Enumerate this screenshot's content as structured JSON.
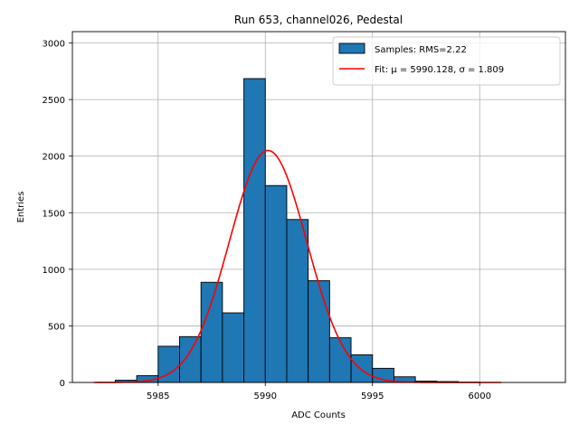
{
  "chart_data": {
    "type": "bar",
    "title": "Run 653, channel026, Pedestal",
    "xlabel": "ADC Counts",
    "ylabel": "Entries",
    "xlim": [
      5981.0,
      6004.0
    ],
    "ylim": [
      0,
      3100
    ],
    "xticks": [
      5985,
      5990,
      5995,
      6000
    ],
    "yticks": [
      0,
      500,
      1000,
      1500,
      2000,
      2500,
      3000
    ],
    "grid": true,
    "legend_position": "top-right",
    "bin_edges": [
      5983,
      5984,
      5985,
      5986,
      5987,
      5988,
      5989,
      5990,
      5991,
      5992,
      5993,
      5994,
      5995,
      5996,
      5997,
      5998,
      5999,
      6000
    ],
    "values": [
      20,
      60,
      320,
      405,
      885,
      615,
      2685,
      1740,
      1440,
      900,
      395,
      245,
      125,
      50,
      12,
      8,
      3
    ],
    "bar_color": "#1f77b4",
    "series": [
      {
        "name": "Samples: RMS=2.22",
        "kind": "histogram",
        "color": "#1f77b4"
      },
      {
        "name": "Fit: μ = 5990.128, σ = 1.809",
        "kind": "gaussian-line",
        "color": "#ff0000",
        "mu": 5990.128,
        "sigma": 1.809,
        "amplitude": 2050,
        "x_range": [
          5982,
          6001
        ]
      }
    ]
  }
}
